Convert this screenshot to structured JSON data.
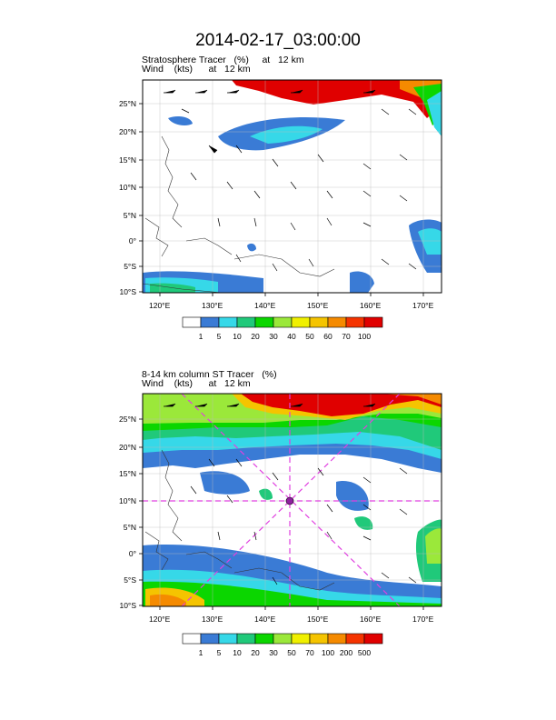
{
  "title": "2014-02-17_03:00:00",
  "panels": [
    {
      "title_line1": "Stratosphere Tracer   (%)     at   12 km",
      "title_line2": "Wind    (kts)      at   12 km",
      "lat_labels": [
        "25°N",
        "20°N",
        "15°N",
        "10°N",
        "5°N",
        "0°",
        "5°S",
        "10°S"
      ],
      "lon_labels": [
        "120°E",
        "130°E",
        "140°E",
        "150°E",
        "160°E",
        "170°E"
      ],
      "colorbar_labels": [
        "1",
        "5",
        "10",
        "20",
        "30",
        "40",
        "50",
        "60",
        "70",
        "100"
      ],
      "colorbar_colors": [
        "#ffffff",
        "#3a7bd5",
        "#36d8e8",
        "#20c97a",
        "#0bd600",
        "#9be83a",
        "#f0f000",
        "#f5c400",
        "#f58a00",
        "#f53300",
        "#e00000"
      ]
    },
    {
      "title_line1": "8-14 km column ST Tracer   (%)",
      "title_line2": "Wind    (kts)      at   12 km",
      "lat_labels": [
        "25°N",
        "20°N",
        "15°N",
        "10°N",
        "5°N",
        "0°",
        "5°S",
        "10°S"
      ],
      "lon_labels": [
        "120°E",
        "130°E",
        "140°E",
        "150°E",
        "160°E",
        "170°E"
      ],
      "colorbar_labels": [
        "1",
        "5",
        "10",
        "20",
        "30",
        "50",
        "70",
        "100",
        "200",
        "500"
      ],
      "colorbar_colors": [
        "#ffffff",
        "#3a7bd5",
        "#36d8e8",
        "#20c97a",
        "#0bd600",
        "#9be83a",
        "#f0f000",
        "#f5c400",
        "#f58a00",
        "#f53300",
        "#e00000"
      ]
    }
  ]
}
